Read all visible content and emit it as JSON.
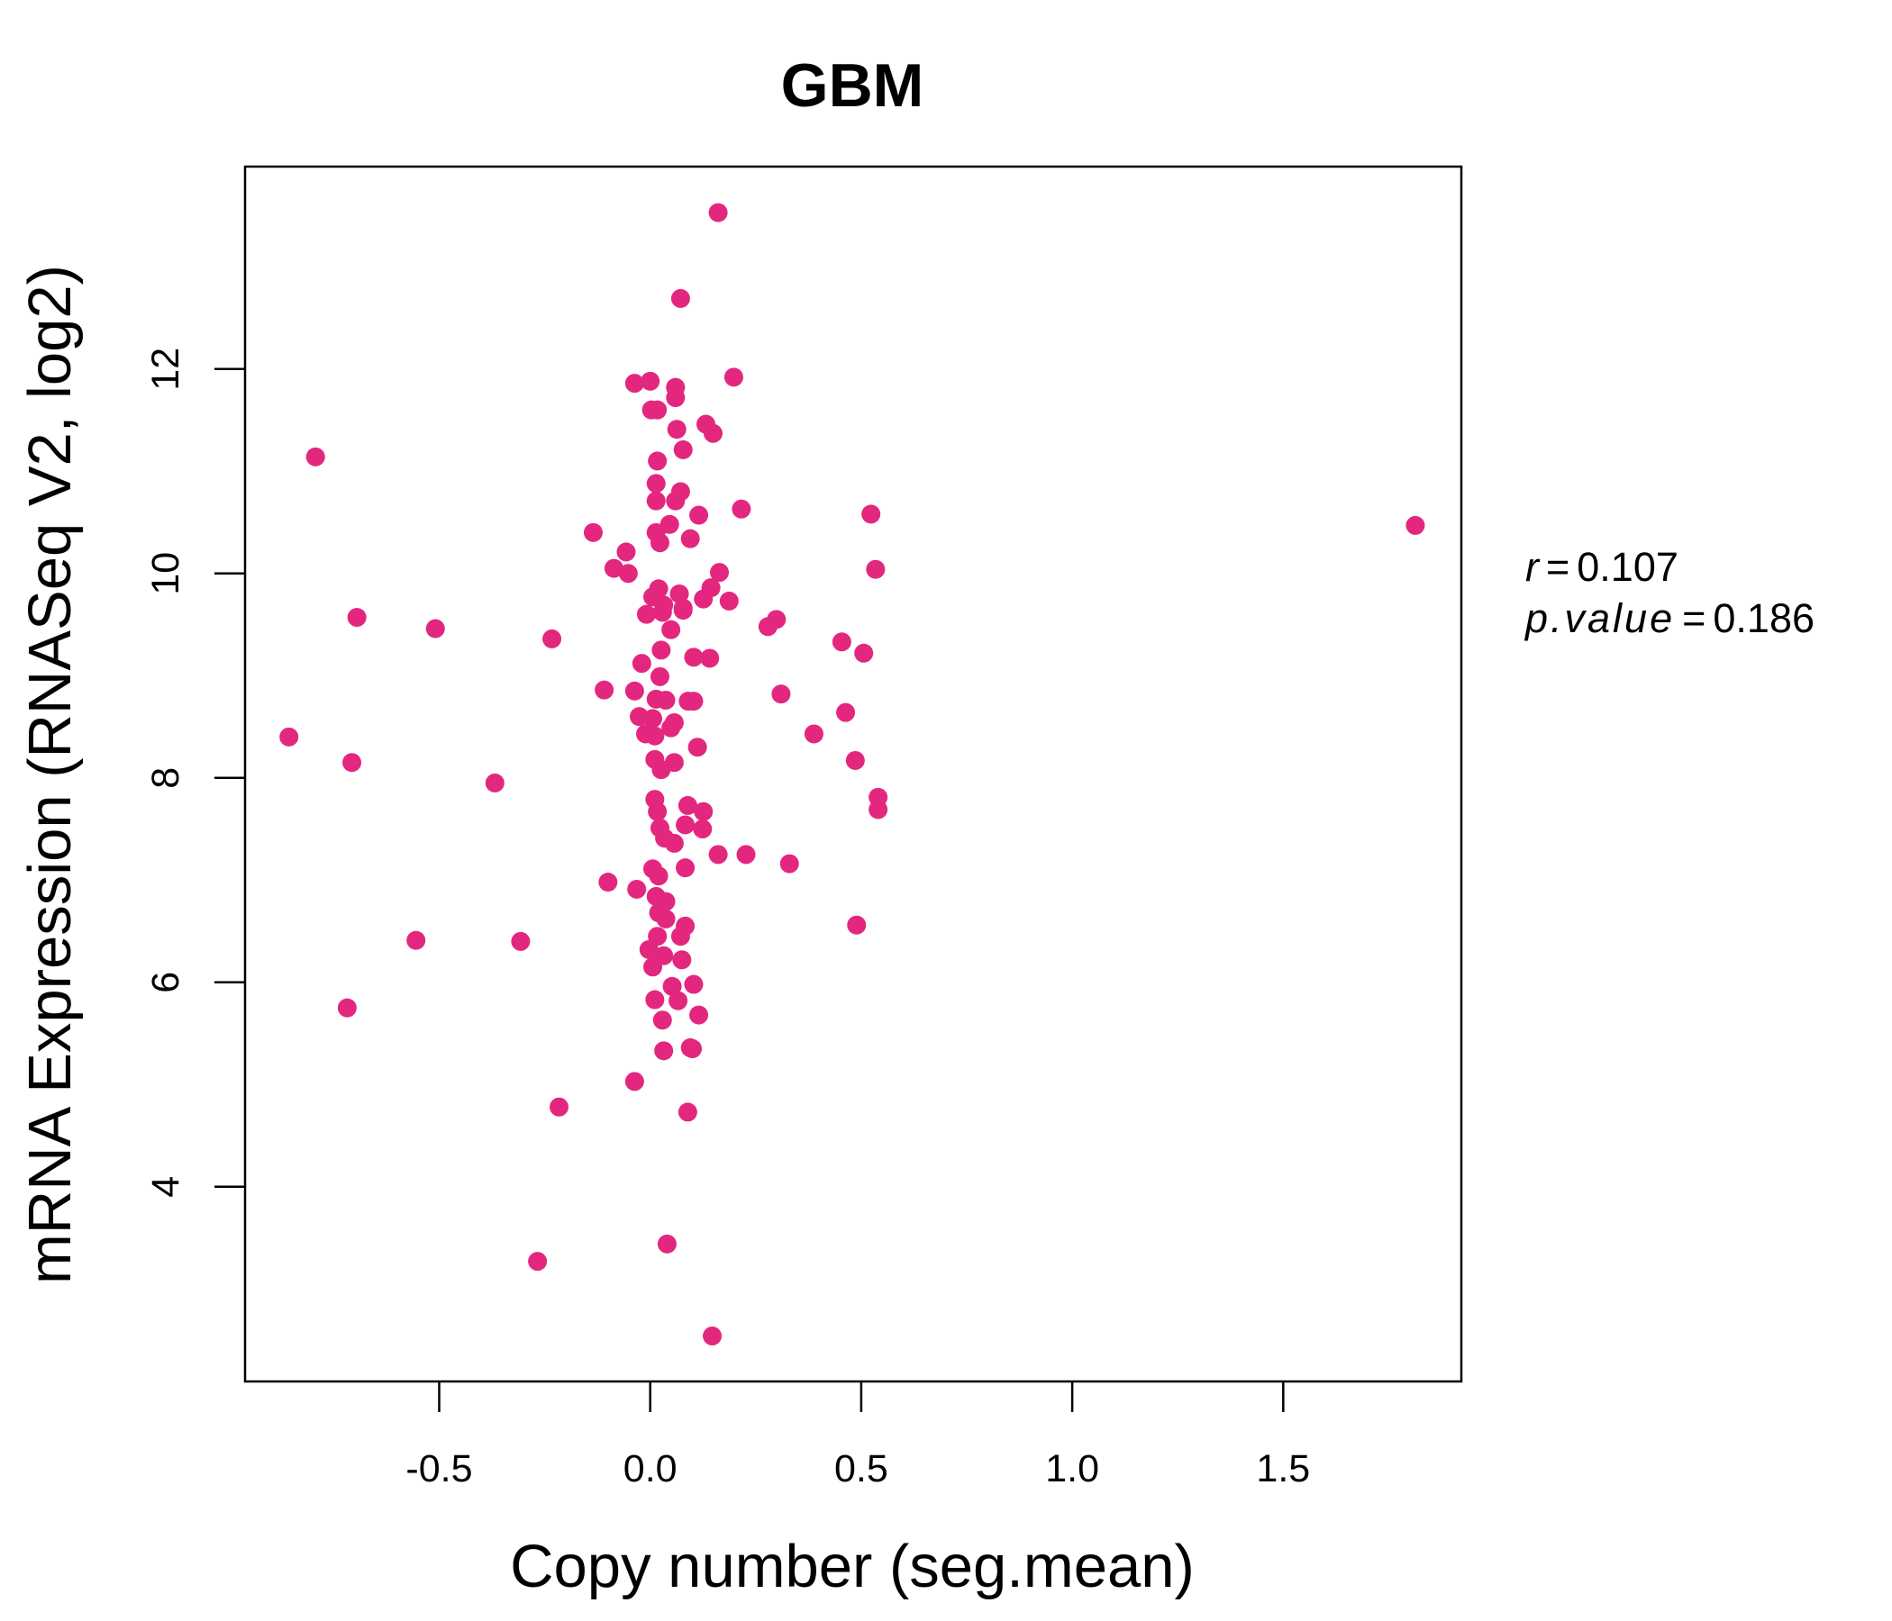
{
  "colors": {
    "point": "#E3277F",
    "title": "#E3277F",
    "axis": "#000000"
  },
  "chart_data": {
    "type": "scatter",
    "title": "GBM",
    "xlabel": "Copy number (seg.mean)",
    "ylabel": "mRNA Expression (RNASeq V2, log2)",
    "xlim": [
      -0.96,
      1.922
    ],
    "ylim": [
      2.095,
      13.98
    ],
    "xticks": [
      -0.5,
      0.0,
      0.5,
      1.0,
      1.5
    ],
    "xtick_labels": [
      "-0.5",
      "0.0",
      "0.5",
      "1.0",
      "1.5"
    ],
    "yticks": [
      4,
      6,
      8,
      10,
      12
    ],
    "ytick_labels": [
      "4",
      "6",
      "8",
      "10",
      "12"
    ],
    "grid": false,
    "annotation": {
      "r_label": "r",
      "r_value": "0.107",
      "p_label": "p.value",
      "p_value": "0.186",
      "equals": "="
    },
    "points": [
      [
        0.161,
        13.53
      ],
      [
        0.072,
        12.69
      ],
      [
        0.198,
        11.92
      ],
      [
        -0.037,
        11.86
      ],
      [
        0.0,
        11.88
      ],
      [
        0.06,
        11.82
      ],
      [
        0.06,
        11.72
      ],
      [
        0.003,
        11.6
      ],
      [
        0.017,
        11.6
      ],
      [
        0.063,
        11.41
      ],
      [
        0.132,
        11.46
      ],
      [
        0.149,
        11.37
      ],
      [
        0.078,
        11.21
      ],
      [
        -0.793,
        11.14
      ],
      [
        0.017,
        11.1
      ],
      [
        0.014,
        10.88
      ],
      [
        0.072,
        10.8
      ],
      [
        0.014,
        10.71
      ],
      [
        0.06,
        10.71
      ],
      [
        0.216,
        10.63
      ],
      [
        0.115,
        10.57
      ],
      [
        0.523,
        10.58
      ],
      [
        1.813,
        10.47
      ],
      [
        0.046,
        10.48
      ],
      [
        0.014,
        10.4
      ],
      [
        -0.135,
        10.4
      ],
      [
        0.095,
        10.34
      ],
      [
        0.023,
        10.3
      ],
      [
        -0.057,
        10.21
      ],
      [
        -0.086,
        10.05
      ],
      [
        -0.052,
        10.0
      ],
      [
        0.164,
        10.01
      ],
      [
        0.534,
        10.04
      ],
      [
        0.144,
        9.86
      ],
      [
        0.02,
        9.85
      ],
      [
        0.069,
        9.8
      ],
      [
        0.006,
        9.77
      ],
      [
        0.126,
        9.75
      ],
      [
        0.187,
        9.73
      ],
      [
        0.032,
        9.69
      ],
      [
        0.078,
        9.66
      ],
      [
        0.078,
        9.64
      ],
      [
        -0.009,
        9.6
      ],
      [
        0.029,
        9.62
      ],
      [
        -0.695,
        9.57
      ],
      [
        0.299,
        9.55
      ],
      [
        0.279,
        9.48
      ],
      [
        -0.509,
        9.46
      ],
      [
        0.049,
        9.45
      ],
      [
        -0.233,
        9.36
      ],
      [
        0.454,
        9.33
      ],
      [
        0.506,
        9.22
      ],
      [
        0.026,
        9.25
      ],
      [
        0.103,
        9.18
      ],
      [
        0.141,
        9.17
      ],
      [
        -0.02,
        9.12
      ],
      [
        0.023,
        8.99
      ],
      [
        -0.109,
        8.86
      ],
      [
        -0.037,
        8.85
      ],
      [
        0.31,
        8.82
      ],
      [
        0.014,
        8.77
      ],
      [
        0.037,
        8.76
      ],
      [
        0.09,
        8.75
      ],
      [
        0.103,
        8.75
      ],
      [
        0.463,
        8.64
      ],
      [
        -0.026,
        8.6
      ],
      [
        0.006,
        8.58
      ],
      [
        0.057,
        8.54
      ],
      [
        0.049,
        8.49
      ],
      [
        -0.856,
        8.4
      ],
      [
        -0.011,
        8.43
      ],
      [
        0.011,
        8.41
      ],
      [
        0.388,
        8.43
      ],
      [
        0.112,
        8.3
      ],
      [
        0.486,
        8.17
      ],
      [
        -0.707,
        8.15
      ],
      [
        0.011,
        8.18
      ],
      [
        0.057,
        8.15
      ],
      [
        0.026,
        8.08
      ],
      [
        -0.368,
        7.95
      ],
      [
        0.011,
        7.79
      ],
      [
        0.54,
        7.81
      ],
      [
        0.089,
        7.73
      ],
      [
        0.126,
        7.67
      ],
      [
        0.54,
        7.69
      ],
      [
        0.017,
        7.67
      ],
      [
        0.023,
        7.51
      ],
      [
        0.083,
        7.54
      ],
      [
        0.124,
        7.5
      ],
      [
        0.034,
        7.41
      ],
      [
        0.057,
        7.36
      ],
      [
        0.161,
        7.25
      ],
      [
        0.227,
        7.25
      ],
      [
        0.33,
        7.16
      ],
      [
        0.083,
        7.12
      ],
      [
        0.006,
        7.11
      ],
      [
        0.02,
        7.04
      ],
      [
        -0.1,
        6.98
      ],
      [
        -0.032,
        6.91
      ],
      [
        0.014,
        6.84
      ],
      [
        0.037,
        6.79
      ],
      [
        0.02,
        6.68
      ],
      [
        0.037,
        6.62
      ],
      [
        0.489,
        6.56
      ],
      [
        0.083,
        6.55
      ],
      [
        0.072,
        6.45
      ],
      [
        0.017,
        6.45
      ],
      [
        -0.555,
        6.41
      ],
      [
        -0.307,
        6.4
      ],
      [
        -0.003,
        6.32
      ],
      [
        0.032,
        6.26
      ],
      [
        0.075,
        6.22
      ],
      [
        0.006,
        6.15
      ],
      [
        0.103,
        5.98
      ],
      [
        0.052,
        5.96
      ],
      [
        0.066,
        5.82
      ],
      [
        0.011,
        5.83
      ],
      [
        -0.718,
        5.75
      ],
      [
        0.115,
        5.68
      ],
      [
        0.029,
        5.63
      ],
      [
        0.095,
        5.36
      ],
      [
        0.1,
        5.35
      ],
      [
        0.032,
        5.33
      ],
      [
        -0.037,
        5.03
      ],
      [
        -0.216,
        4.78
      ],
      [
        0.089,
        4.73
      ],
      [
        0.04,
        3.44
      ],
      [
        -0.267,
        3.27
      ],
      [
        0.147,
        2.54
      ]
    ]
  }
}
